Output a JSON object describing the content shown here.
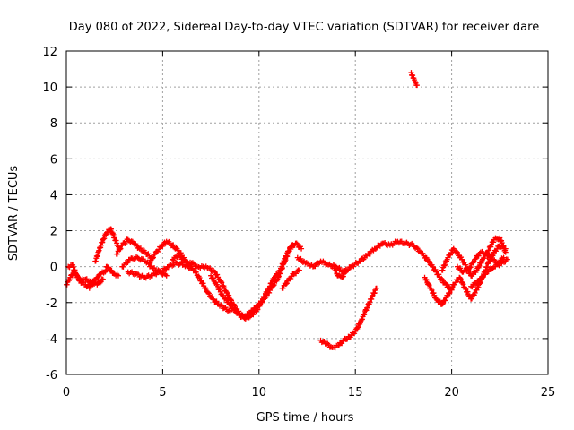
{
  "chart_data": {
    "type": "scatter",
    "title": "Day 080 of 2022, Sidereal Day-to-day VTEC variation (SDTVAR) for receiver dare",
    "xlabel": "GPS time / hours",
    "ylabel": "SDTVAR / TECUs",
    "xlim": [
      0,
      25
    ],
    "ylim": [
      -6,
      12
    ],
    "x_ticks": [
      0,
      5,
      10,
      15,
      20,
      25
    ],
    "y_ticks": [
      -6,
      -4,
      -2,
      0,
      2,
      4,
      6,
      8,
      10,
      12
    ],
    "x_tick_labels": [
      "0",
      "5",
      "10",
      "15",
      "20",
      "25"
    ],
    "y_tick_labels": [
      "-6",
      "-4",
      "-2",
      "0",
      "2",
      "4",
      "6",
      "8",
      "10",
      "12"
    ],
    "grid": true,
    "marker": "+",
    "color": "#ff0000",
    "series": [
      {
        "name": "track-1",
        "x": [
          0,
          0.2,
          0.4,
          0.6,
          0.8,
          1,
          1.2,
          1.4,
          1.6,
          1.8,
          2,
          2.1,
          2.3,
          2.5,
          2.7
        ],
        "y": [
          -1,
          -0.6,
          -0.3,
          -0.6,
          -0.9,
          -1,
          -1.2,
          -0.8,
          -0.6,
          -0.4,
          -0.3,
          0,
          -0.2,
          -0.4,
          -0.5
        ]
      },
      {
        "name": "track-2",
        "x": [
          0.1,
          0.3,
          0.5,
          0.7,
          1,
          1.3,
          1.6,
          1.9
        ],
        "y": [
          0,
          0.1,
          -0.4,
          -0.8,
          -0.7,
          -0.9,
          -1,
          -0.7
        ]
      },
      {
        "name": "track-3",
        "x": [
          1.5,
          1.7,
          1.9,
          2.1,
          2.3,
          2.5,
          2.7
        ],
        "y": [
          0.3,
          0.9,
          1.5,
          1.9,
          2.1,
          1.6,
          1.1
        ]
      },
      {
        "name": "track-4",
        "x": [
          2.6,
          2.9,
          3.2,
          3.5,
          3.8,
          4.1,
          4.4
        ],
        "y": [
          0.7,
          1.2,
          1.5,
          1.3,
          1,
          0.8,
          0.5
        ]
      },
      {
        "name": "track-5",
        "x": [
          2.9,
          3.3,
          3.7,
          4.1,
          4.5,
          4.9,
          5.3,
          5.7,
          6.1,
          6.5
        ],
        "y": [
          0,
          0.4,
          0.5,
          0.3,
          -0.1,
          -0.3,
          0,
          0.2,
          0.1,
          -0.1
        ]
      },
      {
        "name": "track-6",
        "x": [
          3.2,
          3.6,
          4,
          4.4,
          4.8,
          5.2
        ],
        "y": [
          -0.3,
          -0.4,
          -0.6,
          -0.5,
          -0.3,
          -0.5
        ]
      },
      {
        "name": "track-7",
        "x": [
          4.3,
          4.6,
          4.9,
          5.2,
          5.5,
          5.8,
          6.1
        ],
        "y": [
          0.2,
          0.7,
          1.1,
          1.4,
          1.2,
          0.9,
          0.5
        ]
      },
      {
        "name": "track-8",
        "x": [
          5.5,
          5.8,
          6.1,
          6.4,
          6.7,
          7,
          7.3,
          7.6,
          7.9,
          8.2,
          8.5
        ],
        "y": [
          0.4,
          0.6,
          0.4,
          0.1,
          -0.3,
          -0.8,
          -1.4,
          -1.8,
          -2.1,
          -2.3,
          -2.5
        ]
      },
      {
        "name": "track-9",
        "x": [
          6.2,
          6.5,
          6.8,
          7.1,
          7.4,
          7.7,
          8,
          8.3,
          8.6,
          8.9,
          9.2,
          9.5,
          9.8,
          10.1,
          10.4,
          10.7,
          11,
          11.3,
          11.6,
          11.9,
          12.2
        ],
        "y": [
          0.1,
          0.2,
          0,
          0,
          -0.1,
          -0.3,
          -0.8,
          -1.4,
          -2,
          -2.5,
          -2.8,
          -2.6,
          -2.3,
          -2,
          -1.6,
          -1.1,
          -0.6,
          0.2,
          1,
          1.3,
          1
        ]
      },
      {
        "name": "track-10",
        "x": [
          7.5,
          7.8,
          8.1,
          8.4,
          8.7,
          9,
          9.3,
          9.6,
          9.9,
          10.2,
          10.5,
          10.8,
          11.1,
          11.4,
          11.7
        ],
        "y": [
          -0.5,
          -1,
          -1.6,
          -2,
          -2.4,
          -2.7,
          -2.9,
          -2.7,
          -2.4,
          -1.8,
          -1.2,
          -0.6,
          -0.2,
          0.6,
          1.2
        ]
      },
      {
        "name": "track-11",
        "x": [
          11.2,
          11.5,
          11.8,
          12.1
        ],
        "y": [
          -1.2,
          -0.8,
          -0.4,
          -0.2
        ]
      },
      {
        "name": "track-12",
        "x": [
          12,
          12.4,
          12.8,
          13.2,
          13.6,
          14,
          14.4,
          14.8,
          15.2,
          15.6,
          16,
          16.4,
          16.8,
          17.2,
          17.6,
          18,
          18.4,
          18.8,
          19.2,
          19.6,
          20
        ],
        "y": [
          0.5,
          0.2,
          0,
          0.3,
          0.1,
          0,
          -0.3,
          0,
          0.3,
          0.6,
          1,
          1.3,
          1.2,
          1.4,
          1.3,
          1.2,
          0.8,
          0.3,
          -0.3,
          -0.9,
          -1.3
        ]
      },
      {
        "name": "track-13",
        "x": [
          13.9,
          14.1,
          14.3,
          14.5
        ],
        "y": [
          -0.1,
          -0.5,
          -0.6,
          -0.3
        ]
      },
      {
        "name": "track-14",
        "x": [
          13.2,
          13.5,
          13.8,
          14.1,
          14.4,
          14.7,
          15,
          15.3,
          15.6,
          15.9,
          16.1
        ],
        "y": [
          -4.1,
          -4.3,
          -4.5,
          -4.4,
          -4.1,
          -3.9,
          -3.6,
          -3,
          -2.3,
          -1.6,
          -1.2
        ]
      },
      {
        "name": "track-15",
        "x": [
          17.9,
          18,
          18.1,
          18.2
        ],
        "y": [
          10.8,
          10.5,
          10.3,
          10.1
        ]
      },
      {
        "name": "track-16",
        "x": [
          18.6,
          18.9,
          19.2,
          19.5,
          19.8,
          20.1,
          20.4,
          20.7,
          21,
          21.3,
          21.6,
          21.9,
          22.2,
          22.5,
          22.8
        ],
        "y": [
          -0.6,
          -1.2,
          -1.8,
          -2.1,
          -1.6,
          -1,
          -0.6,
          -1.2,
          -1.8,
          -1.3,
          -0.6,
          0.2,
          0.8,
          1.2,
          1
        ]
      },
      {
        "name": "track-17",
        "x": [
          19.5,
          19.8,
          20.1,
          20.4,
          20.7,
          21,
          21.3,
          21.6,
          21.9,
          22.2,
          22.5,
          22.8
        ],
        "y": [
          -0.2,
          0.5,
          1,
          0.6,
          0.1,
          -0.5,
          -0.2,
          0.4,
          0.9,
          1.5,
          1.6,
          0.8
        ]
      },
      {
        "name": "track-18",
        "x": [
          20.3,
          20.6,
          20.9,
          21.2,
          21.5,
          21.8,
          22.1,
          22.4,
          22.7
        ],
        "y": [
          0,
          -0.3,
          -0.1,
          0.4,
          0.8,
          0.7,
          0.4,
          0.2,
          0.5
        ]
      },
      {
        "name": "track-19",
        "x": [
          21,
          21.4,
          21.8,
          22.2,
          22.6,
          22.9
        ],
        "y": [
          -1.1,
          -0.8,
          -0.3,
          0,
          0.2,
          0.4
        ]
      }
    ]
  }
}
